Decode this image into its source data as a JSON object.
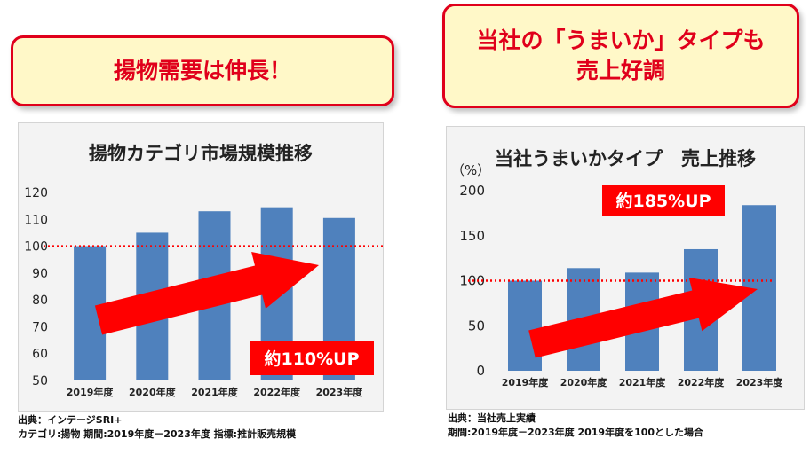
{
  "banners": {
    "left": "揚物需要は伸長！",
    "right_line1": "当社の「うまいか」タイプも",
    "right_line2": "売上好調"
  },
  "chart_data": [
    {
      "type": "bar",
      "title": "揚物カテゴリ市場規模推移",
      "categories": [
        "2019年度",
        "2020年度",
        "2021年度",
        "2022年度",
        "2023年度"
      ],
      "values": [
        100,
        105,
        113,
        114.5,
        110.5
      ],
      "yticks": [
        "120",
        "110",
        "100",
        "90",
        "80",
        "70",
        "60",
        "50"
      ],
      "ylim": [
        50,
        120
      ],
      "reference_line": 100,
      "annotation": "約110%UP",
      "bar_color": "#4f81bd",
      "arrow_color": "#ff0000"
    },
    {
      "type": "bar",
      "title": "当社うまいかタイプ　売上推移",
      "unit_label": "（%）",
      "categories": [
        "2019年度",
        "2020年度",
        "2021年度",
        "2022年度",
        "2023年度"
      ],
      "values": [
        100,
        114,
        109,
        135,
        184
      ],
      "yticks": [
        "200",
        "150",
        "100",
        "50",
        "0"
      ],
      "ylim": [
        0,
        200
      ],
      "reference_line": 100,
      "annotation": "約185%UP",
      "bar_color": "#4f81bd",
      "arrow_color": "#ff0000"
    }
  ],
  "footnotes": {
    "left_line1": "出典：インテージSRI+",
    "left_line2": "カテゴリ:揚物 期間:2019年度－2023年度 指標:推計販売規模",
    "right_line1": "出典：当社売上実績",
    "right_line2": "期間:2019年度－2023年度 2019年度を100とした場合"
  }
}
